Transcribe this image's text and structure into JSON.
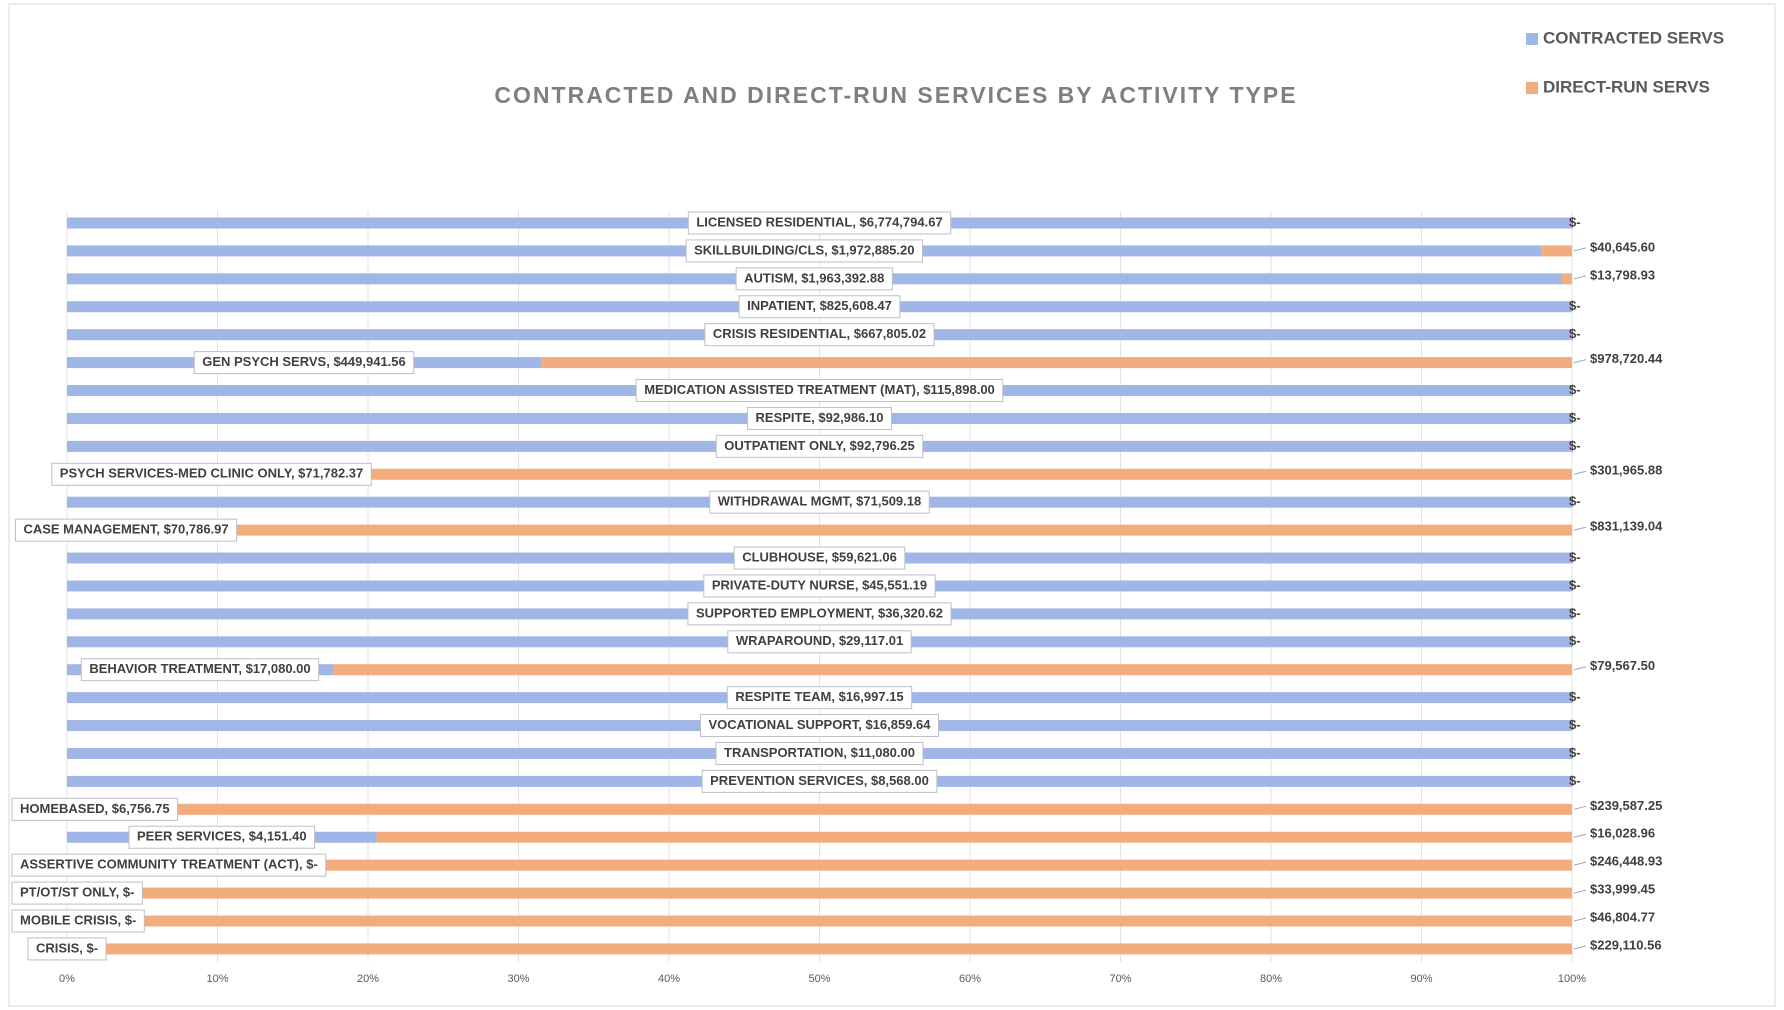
{
  "chart_data": {
    "type": "bar",
    "orientation": "horizontal",
    "stacked": "percent",
    "title": "CONTRACTED AND DIRECT-RUN SERVICES BY ACTIVITY TYPE",
    "legend": "top-right",
    "grid": true,
    "xlim": [
      0,
      100
    ],
    "xticks": [
      {
        "value": 0,
        "label": "0%"
      },
      {
        "value": 10,
        "label": "10%"
      },
      {
        "value": 20,
        "label": "20%"
      },
      {
        "value": 30,
        "label": "30%"
      },
      {
        "value": 40,
        "label": "40%"
      },
      {
        "value": 50,
        "label": "50%"
      },
      {
        "value": 60,
        "label": "60%"
      },
      {
        "value": 70,
        "label": "70%"
      },
      {
        "value": 80,
        "label": "80%"
      },
      {
        "value": 90,
        "label": "90%"
      },
      {
        "value": 100,
        "label": "100%"
      }
    ],
    "series": [
      {
        "name": "CONTRACTED SERVS",
        "color": "#9fb6e6",
        "values": [
          6774794.67,
          1972885.2,
          1963392.88,
          825608.47,
          667805.02,
          449941.56,
          115898.0,
          92986.1,
          92796.25,
          71782.37,
          71509.18,
          70786.97,
          59621.06,
          45551.19,
          36320.62,
          29117.01,
          17080.0,
          16997.15,
          16859.64,
          11080.0,
          8568.0,
          6756.75,
          4151.4,
          0,
          0,
          0,
          0
        ],
        "value_labels": [
          "LICENSED RESIDENTIAL,  $6,774,794.67",
          "SKILLBUILDING/CLS,  $1,972,885.20",
          "AUTISM,  $1,963,392.88",
          "INPATIENT,  $825,608.47",
          "CRISIS RESIDENTIAL,  $667,805.02",
          "GEN PSYCH SERVS,  $449,941.56",
          "MEDICATION ASSISTED TREATMENT (MAT),  $115,898.00",
          "RESPITE,  $92,986.10",
          "OUTPATIENT ONLY,  $92,796.25",
          "PSYCH SERVICES-MED CLINIC ONLY,  $71,782.37",
          "WITHDRAWAL MGMT,  $71,509.18",
          "CASE MANAGEMENT,  $70,786.97",
          "CLUBHOUSE,  $59,621.06",
          "PRIVATE-DUTY NURSE,  $45,551.19",
          "SUPPORTED EMPLOYMENT,  $36,320.62",
          "WRAPAROUND,  $29,117.01",
          "BEHAVIOR TREATMENT,  $17,080.00",
          "RESPITE TEAM,  $16,997.15",
          "VOCATIONAL SUPPORT,  $16,859.64",
          "TRANSPORTATION,  $11,080.00",
          "PREVENTION SERVICES,  $8,568.00",
          "HOMEBASED,  $6,756.75",
          "PEER SERVICES,  $4,151.40",
          "ASSERTIVE COMMUNITY TREATMENT (ACT),  $-",
          "PT/OT/ST ONLY,  $-",
          "MOBILE CRISIS,  $-",
          "CRISIS,  $-"
        ]
      },
      {
        "name": "DIRECT-RUN SERVS",
        "color": "#f3ac7e",
        "values": [
          0,
          40645.6,
          13798.93,
          0,
          0,
          978720.44,
          0,
          0,
          0,
          301965.88,
          0,
          831139.04,
          0,
          0,
          0,
          0,
          79567.5,
          0,
          0,
          0,
          0,
          239587.25,
          16028.96,
          246448.93,
          33999.45,
          46804.77,
          229110.56
        ],
        "value_labels": [
          "$-",
          "$40,645.60",
          "$13,798.93",
          "$-",
          "$-",
          "$978,720.44",
          "$-",
          "$-",
          "$-",
          "$301,965.88",
          "$-",
          "$831,139.04",
          "$-",
          "$-",
          "$-",
          "$-",
          "$79,567.50",
          "$-",
          "$-",
          "$-",
          "$-",
          "$239,587.25",
          "$16,028.96",
          "$246,448.93",
          "$33,999.45",
          "$46,804.77",
          "$229,110.56"
        ]
      }
    ]
  }
}
